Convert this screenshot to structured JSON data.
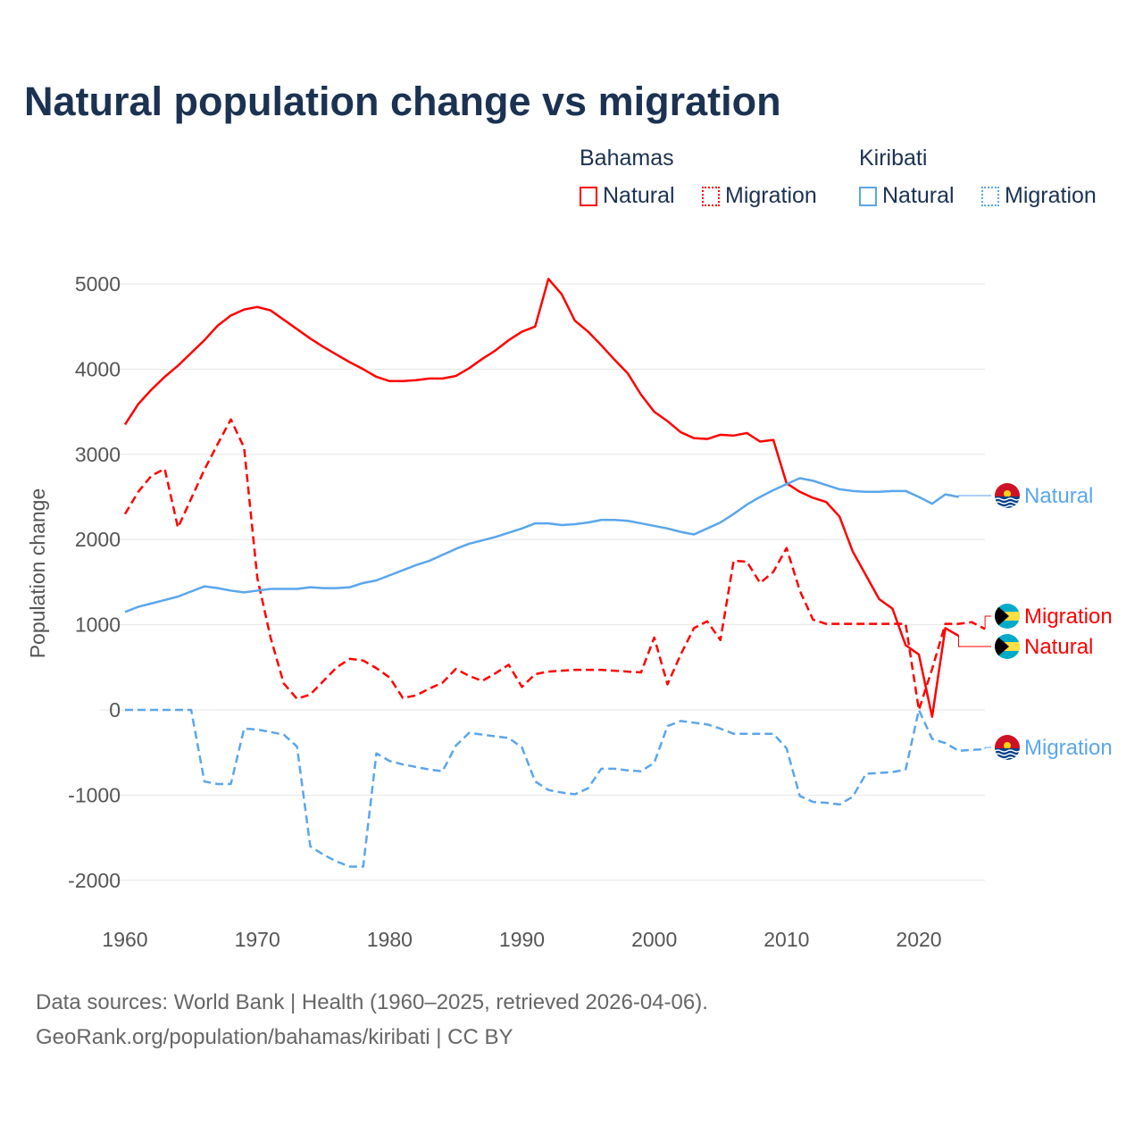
{
  "title": "Natural population change vs migration",
  "legend": {
    "groups": [
      {
        "name": "Bahamas",
        "items": [
          "Natural",
          "Migration"
        ],
        "color": "#ff0000"
      },
      {
        "name": "Kiribati",
        "items": [
          "Natural",
          "Migration"
        ],
        "color": "#5aa6ec"
      }
    ]
  },
  "footer": {
    "line1": "Data sources: World Bank | Health (1960–2025, retrieved 2026-04-06).",
    "line2": "GeoRank.org/population/bahamas/kiribati | CC BY"
  },
  "chart_data": {
    "type": "line",
    "title": "Natural population change vs migration",
    "xlabel": "",
    "ylabel": "Population change",
    "xlim": [
      1960,
      2025
    ],
    "ylim": [
      -2300,
      5300
    ],
    "xticks": [
      1960,
      1970,
      1980,
      1990,
      2000,
      2010,
      2020
    ],
    "yticks": [
      -2000,
      -1000,
      0,
      1000,
      2000,
      3000,
      4000,
      5000
    ],
    "grid": true,
    "legend_position": "top-right",
    "x_start": 1960,
    "series": [
      {
        "name": "Bahamas Natural",
        "country": "Bahamas",
        "kind": "Natural",
        "color": "#ff0000",
        "dashed": false,
        "end_label": "Natural",
        "values": [
          3350,
          3590,
          3760,
          3910,
          4040,
          4190,
          4340,
          4510,
          4630,
          4700,
          4730,
          4690,
          4580,
          4470,
          4360,
          4260,
          4170,
          4080,
          4000,
          3910,
          3860,
          3860,
          3870,
          3890,
          3890,
          3920,
          4010,
          4120,
          4220,
          4340,
          4440,
          4500,
          5060,
          4880,
          4570,
          4440,
          4280,
          4110,
          3950,
          3700,
          3500,
          3390,
          3260,
          3190,
          3180,
          3230,
          3220,
          3250,
          3150,
          3170,
          2660,
          2560,
          2490,
          2440,
          2270,
          1860,
          1580,
          1300,
          1190,
          760,
          650,
          -80,
          960,
          870
        ]
      },
      {
        "name": "Bahamas Migration",
        "country": "Bahamas",
        "kind": "Migration",
        "color": "#ff0000",
        "dashed": true,
        "end_label": "Migration",
        "values": [
          2300,
          2560,
          2750,
          2830,
          2140,
          2480,
          2820,
          3120,
          3410,
          3080,
          1550,
          850,
          310,
          130,
          180,
          340,
          500,
          600,
          580,
          490,
          380,
          140,
          170,
          250,
          320,
          480,
          400,
          340,
          430,
          530,
          270,
          420,
          450,
          460,
          470,
          470,
          470,
          460,
          450,
          440,
          850,
          300,
          650,
          960,
          1040,
          820,
          1750,
          1740,
          1490,
          1620,
          1900,
          1400,
          1060,
          1010,
          1010,
          1010,
          1010,
          1010,
          1010,
          1010,
          0,
          480,
          1010,
          1010,
          1030,
          950
        ]
      },
      {
        "name": "Kiribati Natural",
        "country": "Kiribati",
        "kind": "Natural",
        "color": "#5aa6ec",
        "dashed": false,
        "end_label": "Natural",
        "values": [
          1150,
          1210,
          1250,
          1290,
          1330,
          1390,
          1450,
          1430,
          1400,
          1380,
          1400,
          1420,
          1420,
          1420,
          1440,
          1430,
          1430,
          1440,
          1490,
          1520,
          1580,
          1640,
          1700,
          1750,
          1820,
          1890,
          1950,
          1990,
          2030,
          2080,
          2130,
          2190,
          2190,
          2170,
          2180,
          2200,
          2230,
          2230,
          2220,
          2190,
          2160,
          2130,
          2090,
          2060,
          2130,
          2200,
          2300,
          2410,
          2500,
          2580,
          2650,
          2720,
          2690,
          2640,
          2590,
          2570,
          2560,
          2560,
          2570,
          2570,
          2500,
          2420,
          2530,
          2500
        ]
      },
      {
        "name": "Kiribati Migration",
        "country": "Kiribati",
        "kind": "Migration",
        "color": "#5aa6ec",
        "dashed": true,
        "end_label": "Migration",
        "values": [
          0,
          0,
          0,
          0,
          0,
          0,
          -840,
          -870,
          -870,
          -220,
          -230,
          -260,
          -290,
          -430,
          -1600,
          -1700,
          -1780,
          -1840,
          -1840,
          -510,
          -600,
          -640,
          -670,
          -700,
          -720,
          -420,
          -270,
          -290,
          -310,
          -330,
          -440,
          -840,
          -940,
          -970,
          -990,
          -920,
          -690,
          -690,
          -710,
          -720,
          -620,
          -190,
          -130,
          -150,
          -170,
          -220,
          -280,
          -280,
          -280,
          -280,
          -450,
          -1010,
          -1080,
          -1090,
          -1110,
          -1020,
          -750,
          -740,
          -730,
          -700,
          0,
          -340,
          -390,
          -480,
          -470,
          -460
        ]
      }
    ]
  }
}
